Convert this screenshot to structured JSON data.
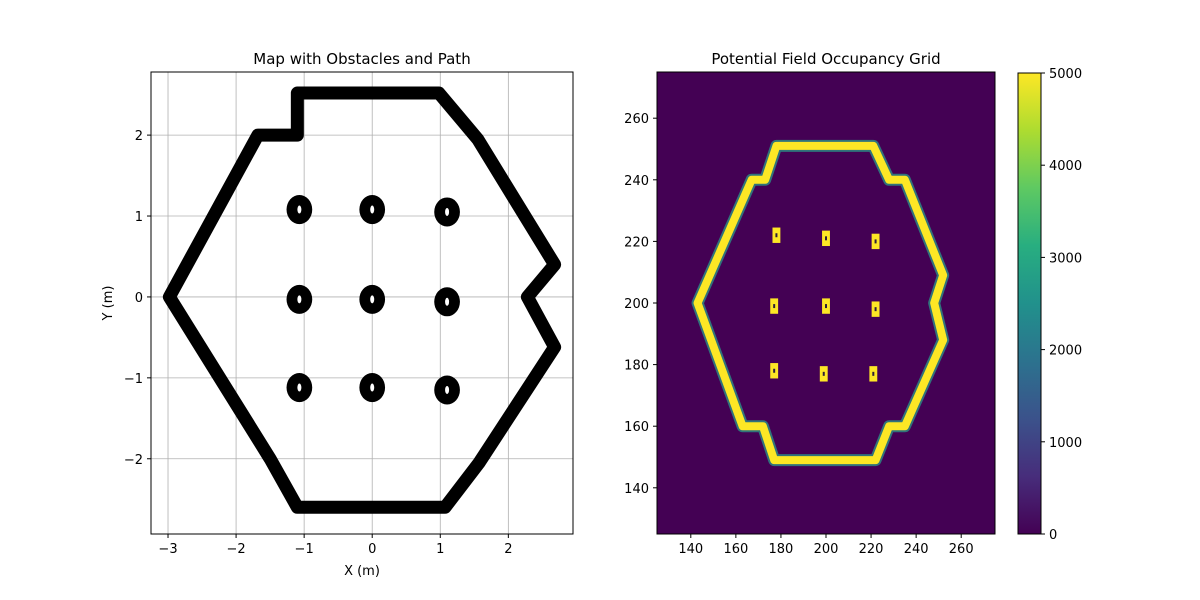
{
  "chart_data": [
    {
      "type": "scatter",
      "title": "Map with Obstacles and Path",
      "xlabel": "X (m)",
      "ylabel": "Y (m)",
      "xlim": [
        -3.25,
        2.95
      ],
      "ylim": [
        -2.93,
        2.78
      ],
      "xticks": [
        -3,
        -2,
        -1,
        0,
        1,
        2
      ],
      "yticks": [
        -2,
        -1,
        0,
        1,
        2
      ],
      "grid": true,
      "marker_color": "#000000",
      "boundary": {
        "vertices": [
          [
            -1.1,
            2.52
          ],
          [
            0.98,
            2.52
          ],
          [
            1.55,
            1.95
          ],
          [
            2.68,
            0.4
          ],
          [
            2.28,
            0.0
          ],
          [
            2.68,
            -0.62
          ],
          [
            1.57,
            -2.05
          ],
          [
            1.07,
            -2.6
          ],
          [
            -1.1,
            -2.6
          ],
          [
            -1.5,
            -2.0
          ],
          [
            -2.98,
            0.0
          ],
          [
            -1.68,
            2.0
          ],
          [
            -1.1,
            2.0
          ]
        ]
      },
      "obstacles": {
        "centers": [
          [
            -1.07,
            1.08
          ],
          [
            0.0,
            1.08
          ],
          [
            1.1,
            1.05
          ],
          [
            -1.07,
            -0.03
          ],
          [
            0.0,
            -0.03
          ],
          [
            1.1,
            -0.06
          ],
          [
            -1.07,
            -1.12
          ],
          [
            0.0,
            -1.12
          ],
          [
            1.1,
            -1.15
          ]
        ],
        "radius": 0.13
      }
    },
    {
      "type": "heatmap",
      "title": "Potential Field Occupancy Grid",
      "xlim": [
        125,
        275
      ],
      "ylim": [
        125,
        275
      ],
      "xticks": [
        140,
        160,
        180,
        200,
        220,
        240,
        260
      ],
      "yticks": [
        140,
        160,
        180,
        200,
        220,
        240,
        260
      ],
      "colormap": "viridis",
      "background_color": "#440154",
      "peak_color": "#fde725",
      "colorbar": {
        "min": 0,
        "max": 5000,
        "ticks": [
          0,
          1000,
          2000,
          3000,
          4000,
          5000
        ]
      },
      "boundary": {
        "vertices": [
          [
            178,
            251
          ],
          [
            221,
            251
          ],
          [
            228,
            240
          ],
          [
            235,
            240
          ],
          [
            252,
            209
          ],
          [
            248,
            200
          ],
          [
            252,
            188
          ],
          [
            235,
            160
          ],
          [
            228,
            160
          ],
          [
            222,
            149
          ],
          [
            177,
            149
          ],
          [
            172,
            160
          ],
          [
            163,
            160
          ],
          [
            143,
            200
          ],
          [
            167,
            240
          ],
          [
            173,
            240
          ]
        ]
      },
      "obstacles": {
        "cells": [
          [
            178,
            222
          ],
          [
            200,
            221
          ],
          [
            222,
            220
          ],
          [
            177,
            199
          ],
          [
            200,
            199
          ],
          [
            222,
            198
          ],
          [
            177,
            178
          ],
          [
            199,
            177
          ],
          [
            221,
            177
          ]
        ],
        "size": [
          3.5,
          5
        ]
      }
    }
  ]
}
